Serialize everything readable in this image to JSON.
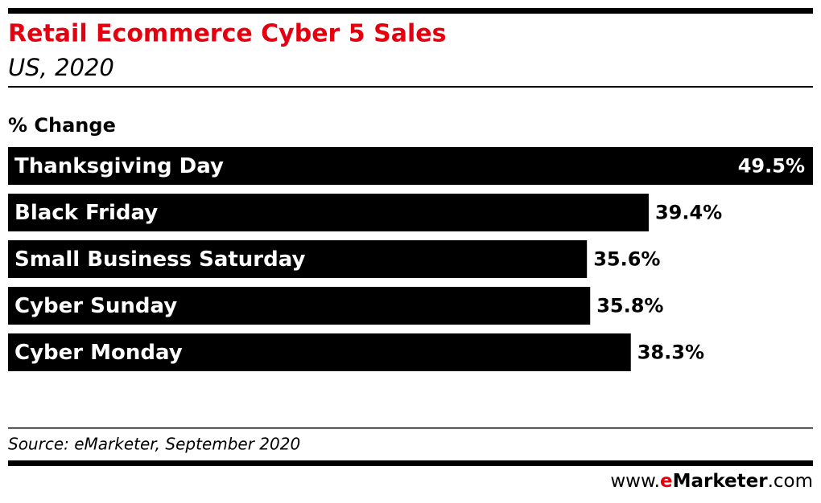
{
  "chart_data": {
    "type": "bar",
    "orientation": "horizontal",
    "title": "Retail Ecommerce Cyber 5 Sales",
    "subtitle": "US, 2020",
    "axis_label": "% Change",
    "categories": [
      "Thanksgiving Day",
      "Black Friday",
      "Small Business Saturday",
      "Cyber Sunday",
      "Cyber Monday"
    ],
    "values": [
      49.5,
      39.4,
      35.6,
      35.8,
      38.3
    ],
    "value_labels": [
      "49.5%",
      "39.4%",
      "35.6%",
      "35.8%",
      "38.3%"
    ],
    "color": "#000000",
    "xlim": [
      0,
      49.5
    ],
    "source": "Source: eMarketer, September 2020",
    "logo": [
      "www.",
      "e",
      "Marketer",
      ".com"
    ]
  }
}
